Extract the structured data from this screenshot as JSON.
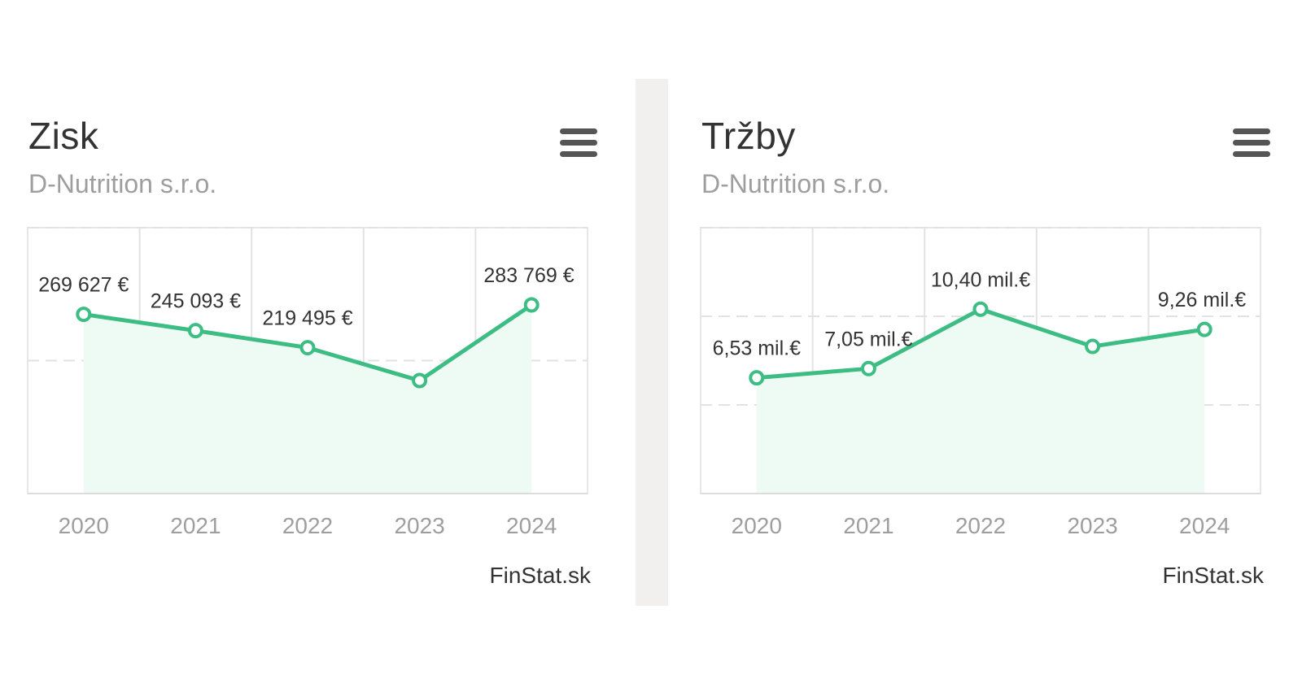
{
  "charts": [
    {
      "title": "Zisk",
      "subtitle": "D-Nutrition s.r.o.",
      "credit": "FinStat.sk",
      "menu_icon": "hamburger-menu-icon"
    },
    {
      "title": "Tržby",
      "subtitle": "D-Nutrition s.r.o.",
      "credit": "FinStat.sk",
      "menu_icon": "hamburger-menu-icon"
    }
  ],
  "chart_data": [
    {
      "type": "area",
      "title": "Zisk",
      "subtitle": "D-Nutrition s.r.o.",
      "xlabel": "",
      "ylabel": "",
      "categories": [
        "2020",
        "2021",
        "2022",
        "2023",
        "2024"
      ],
      "values": [
        269627,
        245093,
        219495,
        170000,
        283769
      ],
      "data_labels": [
        "269 627 €",
        "245 093 €",
        "219 495 €",
        "",
        "283 769 €"
      ],
      "ylim": [
        0,
        400000
      ],
      "gridlines": [
        0,
        200000,
        400000
      ],
      "grid": true,
      "legend": "none",
      "line_color": "#3dbd84",
      "fill_color": "#eefaf4",
      "grid_color": "#e2e2e2"
    },
    {
      "type": "area",
      "title": "Tržby",
      "subtitle": "D-Nutrition s.r.o.",
      "xlabel": "",
      "ylabel": "",
      "categories": [
        "2020",
        "2021",
        "2022",
        "2023",
        "2024"
      ],
      "values": [
        6.53,
        7.05,
        10.4,
        8.3,
        9.26
      ],
      "data_labels": [
        "6,53 mil.€",
        "7,05 mil.€",
        "10,40 mil.€",
        "",
        "9,26 mil.€"
      ],
      "ylim": [
        0,
        15
      ],
      "gridlines": [
        0,
        5,
        10,
        15
      ],
      "grid": true,
      "legend": "none",
      "line_color": "#3dbd84",
      "fill_color": "#eefaf4",
      "grid_color": "#e2e2e2"
    }
  ]
}
